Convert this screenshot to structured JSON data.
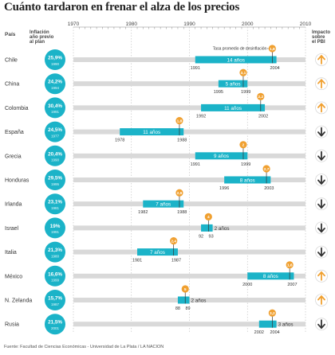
{
  "title": "Cuánto tardaron en frenar el alza de los precios",
  "source": "Fuente: Facultad de Ciencias Económicas - Universidad de La Plata / LA NACION",
  "headers": {
    "country": "País",
    "inflation": [
      "Inflación",
      "año previo",
      "al plan"
    ],
    "impact": [
      "Impacto",
      "sobre",
      "el PBI"
    ]
  },
  "colors": {
    "bar": "#1bb3c8",
    "track": "#d9d9d9",
    "badge": "#1bb3c8",
    "marker": "#f0a030",
    "arrow_up": "#f0a030",
    "arrow_down": "#333333"
  },
  "chart_data": {
    "type": "bar",
    "subtype": "horizontal-range-timeline",
    "x_ticks": [
      1970,
      1980,
      1990,
      2000,
      2010
    ],
    "xlim": [
      1970,
      2010
    ],
    "grid": true,
    "annotation": "Tasa promedio de desinflación",
    "rows": [
      {
        "country": "Chile",
        "inflation": "25,9%",
        "year": "1990",
        "start": 1991,
        "end": 2004,
        "years_label": "14 años",
        "rate": "1,8",
        "marker_year": 2004,
        "start_label": "1991",
        "end_label": "2004",
        "impact": "up"
      },
      {
        "country": "China",
        "inflation": "24,2%",
        "year": "1994",
        "start": 1995,
        "end": 1999,
        "years_label": "5 años",
        "rate": "3,1",
        "marker_year": 1999,
        "start_label": "1995",
        "end_label": "1999",
        "impact": "up"
      },
      {
        "country": "Colombia",
        "inflation": "30,4%",
        "year": "1991",
        "start": 1992,
        "end": 2002,
        "years_label": "11 años",
        "rate": "2,2",
        "marker_year": 2002,
        "start_label": "1992",
        "end_label": "2002",
        "impact": "up"
      },
      {
        "country": "España",
        "inflation": "24,5%",
        "year": "1977",
        "start": 1978,
        "end": 1988,
        "years_label": "11 años",
        "rate": "1,8",
        "marker_year": 1988,
        "start_label": "1978",
        "end_label": "1988",
        "impact": "down"
      },
      {
        "country": "Grecia",
        "inflation": "20,4%",
        "year": "1990",
        "start": 1991,
        "end": 1999,
        "years_label": "9 años",
        "rate": "2",
        "marker_year": 1999,
        "start_label": "1991",
        "end_label": "1999",
        "impact": "down"
      },
      {
        "country": "Honduras",
        "inflation": "29,5%",
        "year": "1995",
        "start": 1996,
        "end": 2003,
        "years_label": "8 años",
        "rate": "2,7",
        "marker_year": 2003,
        "start_label": "1996",
        "end_label": "2003",
        "impact": "down"
      },
      {
        "country": "Irlanda",
        "inflation": "23,1%",
        "year": "1981",
        "start": 1982,
        "end": 1988,
        "years_label": "7 años",
        "rate": "2,6",
        "marker_year": 1988,
        "start_label": "1982",
        "end_label": "1988",
        "impact": "down"
      },
      {
        "country": "Israel",
        "inflation": "19%",
        "year": "1991",
        "start": 1992,
        "end": 1993,
        "years_label": "2 años",
        "rate": "4",
        "marker_year": 1993,
        "start_label": "92",
        "end_label": "93",
        "impact": "down"
      },
      {
        "country": "Italia",
        "inflation": "21,3%",
        "year": "1980",
        "start": 1981,
        "end": 1987,
        "years_label": "7 años",
        "rate": "2,4",
        "marker_year": 1987,
        "start_label": "1981",
        "end_label": "1987",
        "impact": "down"
      },
      {
        "country": "México",
        "inflation": "16,6%",
        "year": "1999",
        "start": 2000,
        "end": 2007,
        "years_label": "8 años",
        "rate": "1,6",
        "marker_year": 2007,
        "start_label": "2000",
        "end_label": "2007",
        "impact": "up"
      },
      {
        "country": "N. Zelanda",
        "inflation": "15,7%",
        "year": "1987",
        "start": 1988,
        "end": 1989,
        "years_label": "2 años",
        "rate": "5",
        "marker_year": 1989,
        "start_label": "88",
        "end_label": "89",
        "impact": "up"
      },
      {
        "country": "Rusia",
        "inflation": "21,5%",
        "year": "2001",
        "start": 2002,
        "end": 2004,
        "years_label": "3 años",
        "rate": "3,2",
        "marker_year": 2004,
        "start_label": "2002",
        "end_label": "2004",
        "impact": "down"
      }
    ]
  }
}
